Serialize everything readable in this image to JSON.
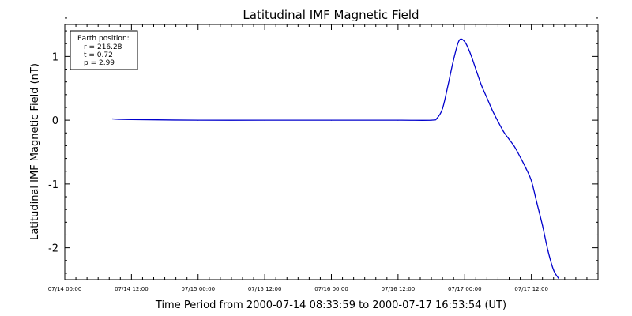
{
  "chart_data": {
    "type": "line",
    "title": "Latitudinal IMF Magnetic Field",
    "xlabel": "Time Period from 2000-07-14 08:33:59 to 2000-07-17 16:53:54 (UT)",
    "ylabel": "Latitudinal IMF Magnetic Field (nT)",
    "x_ticks": [
      "07/14 00:00",
      "07/14 12:00",
      "07/15 00:00",
      "07/15 12:00",
      "07/16 00:00",
      "07/16 12:00",
      "07/17 00:00",
      "07/17 12:00"
    ],
    "y_ticks": [
      "-2",
      "-1",
      "0",
      "1"
    ],
    "ylim": [
      -2.5,
      1.5
    ],
    "xlim": [
      "2000-07-14 00:00",
      "2000-07-18 00:00"
    ],
    "grid": false,
    "legend_box": {
      "heading": "Earth position:",
      "lines": [
        "r = 216.28",
        "t = 0.72",
        "p = 2.99"
      ],
      "placement": "top-left"
    },
    "series": [
      {
        "color": "#0000cc",
        "points": [
          {
            "x": "2000-07-14 08:34",
            "y": 0.02
          },
          {
            "x": "2000-07-14 12:00",
            "y": 0.01
          },
          {
            "x": "2000-07-15 00:00",
            "y": 0.0
          },
          {
            "x": "2000-07-15 12:00",
            "y": 0.0
          },
          {
            "x": "2000-07-16 00:00",
            "y": 0.0
          },
          {
            "x": "2000-07-16 12:00",
            "y": 0.0
          },
          {
            "x": "2000-07-16 18:00",
            "y": 0.0
          },
          {
            "x": "2000-07-16 19:00",
            "y": 0.03
          },
          {
            "x": "2000-07-16 20:00",
            "y": 0.18
          },
          {
            "x": "2000-07-16 21:00",
            "y": 0.55
          },
          {
            "x": "2000-07-16 22:00",
            "y": 0.95
          },
          {
            "x": "2000-07-16 23:00",
            "y": 1.25
          },
          {
            "x": "2000-07-17 00:00",
            "y": 1.23
          },
          {
            "x": "2000-07-17 01:00",
            "y": 1.05
          },
          {
            "x": "2000-07-17 02:00",
            "y": 0.8
          },
          {
            "x": "2000-07-17 03:00",
            "y": 0.55
          },
          {
            "x": "2000-07-17 04:00",
            "y": 0.35
          },
          {
            "x": "2000-07-17 05:00",
            "y": 0.15
          },
          {
            "x": "2000-07-17 06:00",
            "y": -0.02
          },
          {
            "x": "2000-07-17 07:00",
            "y": -0.18
          },
          {
            "x": "2000-07-17 08:00",
            "y": -0.3
          },
          {
            "x": "2000-07-17 09:00",
            "y": -0.42
          },
          {
            "x": "2000-07-17 10:00",
            "y": -0.58
          },
          {
            "x": "2000-07-17 11:00",
            "y": -0.75
          },
          {
            "x": "2000-07-17 12:00",
            "y": -0.95
          },
          {
            "x": "2000-07-17 13:00",
            "y": -1.3
          },
          {
            "x": "2000-07-17 14:00",
            "y": -1.65
          },
          {
            "x": "2000-07-17 15:00",
            "y": -2.05
          },
          {
            "x": "2000-07-17 16:00",
            "y": -2.35
          },
          {
            "x": "2000-07-17 16:54",
            "y": -2.48
          }
        ]
      }
    ]
  }
}
